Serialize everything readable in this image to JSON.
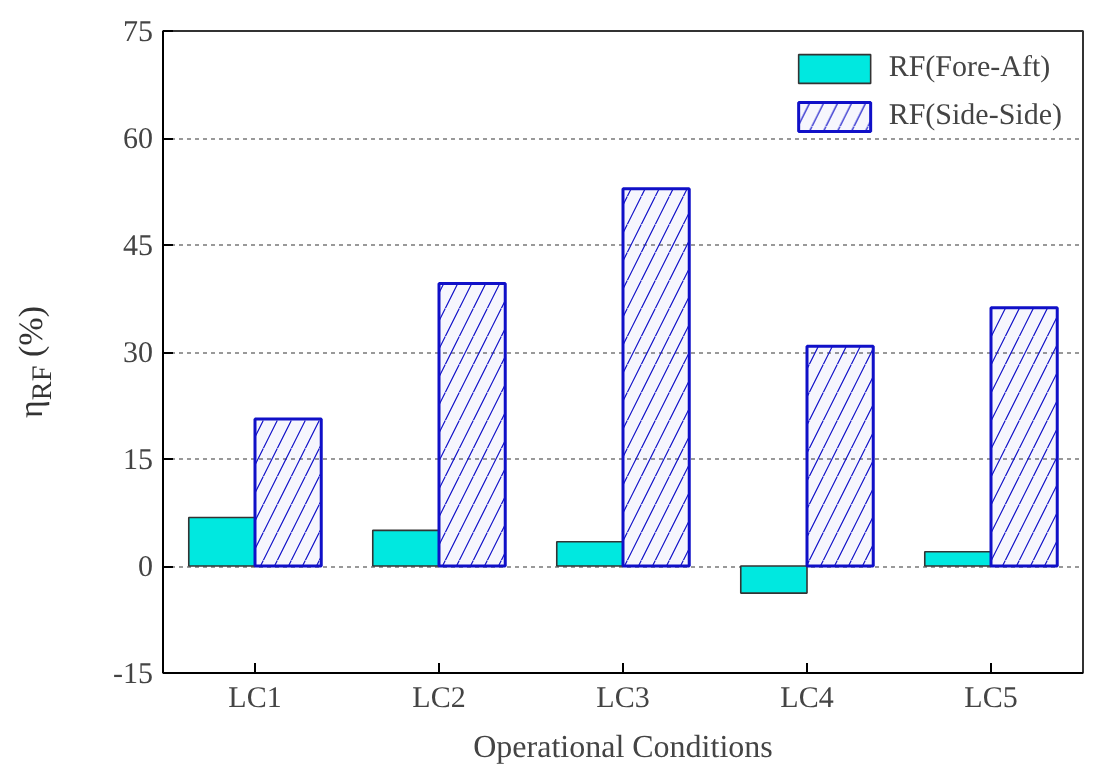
{
  "chart_data": {
    "type": "bar",
    "xlabel": "Operational Conditions",
    "ylabel": "η$_{RF}$ (%)",
    "categories": [
      "LC1",
      "LC2",
      "LC3",
      "LC4",
      "LC5"
    ],
    "series": [
      {
        "name": "RF(Fore-Aft)",
        "color": "#00e8e0",
        "values": [
          6.8,
          5.0,
          3.4,
          -3.8,
          2.0
        ]
      },
      {
        "name": "RF(Side-Side)",
        "color": "#1010c8",
        "values": [
          20.6,
          39.6,
          52.9,
          30.8,
          36.2
        ]
      }
    ],
    "ylim": [
      -15,
      75
    ],
    "yticks": [
      -15,
      0,
      15,
      30,
      45,
      60,
      75
    ],
    "grid": "y",
    "legend": "top right"
  }
}
